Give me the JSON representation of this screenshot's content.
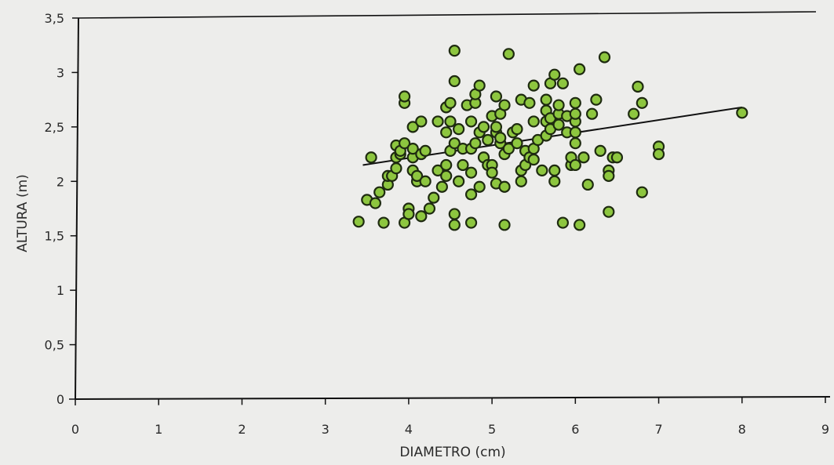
{
  "chart_data": {
    "type": "scatter",
    "title": "",
    "xlabel": "DIAMETRO (cm)",
    "ylabel": "ALTURA (m)",
    "xlim": [
      0,
      9
    ],
    "ylim": [
      0,
      3.5
    ],
    "x_ticks": [
      0,
      1,
      2,
      3,
      4,
      5,
      6,
      7,
      8,
      9
    ],
    "x_tick_labels": [
      "0",
      "1",
      "2",
      "3",
      "4",
      "5",
      "6",
      "7",
      "8",
      "9"
    ],
    "y_ticks": [
      0,
      0.5,
      1,
      1.5,
      2,
      2.5,
      3,
      3.5
    ],
    "y_tick_labels": [
      "0",
      "0,5",
      "1",
      "1,5",
      "2",
      "2,5",
      "3",
      "3,5"
    ],
    "grid": false,
    "legend": "none",
    "colors": {
      "point_fill": "#8dc63f",
      "point_stroke": "#1e2a10",
      "trendline": "#111111",
      "axis": "#111111",
      "background": "#ededeb"
    },
    "trendline": {
      "type": "linear",
      "x": [
        3.45,
        8.0
      ],
      "y": [
        2.15,
        2.68
      ]
    },
    "points": [
      [
        3.4,
        1.63
      ],
      [
        3.55,
        2.22
      ],
      [
        3.5,
        1.83
      ],
      [
        3.6,
        1.8
      ],
      [
        3.65,
        1.9
      ],
      [
        3.7,
        1.62
      ],
      [
        3.75,
        1.97
      ],
      [
        3.75,
        2.05
      ],
      [
        3.8,
        2.05
      ],
      [
        3.85,
        2.12
      ],
      [
        3.85,
        2.22
      ],
      [
        3.85,
        2.33
      ],
      [
        3.9,
        2.25
      ],
      [
        3.9,
        2.28
      ],
      [
        3.95,
        2.35
      ],
      [
        3.95,
        2.72
      ],
      [
        3.95,
        2.78
      ],
      [
        3.95,
        1.62
      ],
      [
        4.0,
        1.75
      ],
      [
        4.0,
        1.7
      ],
      [
        4.05,
        2.1
      ],
      [
        4.05,
        2.22
      ],
      [
        4.05,
        2.3
      ],
      [
        4.05,
        2.5
      ],
      [
        4.1,
        2.0
      ],
      [
        4.1,
        2.05
      ],
      [
        4.15,
        2.25
      ],
      [
        4.15,
        2.55
      ],
      [
        4.15,
        1.68
      ],
      [
        4.2,
        2.0
      ],
      [
        4.2,
        2.28
      ],
      [
        4.25,
        1.75
      ],
      [
        4.3,
        1.85
      ],
      [
        4.35,
        2.1
      ],
      [
        4.35,
        2.55
      ],
      [
        4.4,
        1.95
      ],
      [
        4.45,
        2.05
      ],
      [
        4.45,
        2.15
      ],
      [
        4.45,
        2.45
      ],
      [
        4.45,
        2.68
      ],
      [
        4.5,
        2.28
      ],
      [
        4.5,
        2.55
      ],
      [
        4.5,
        2.72
      ],
      [
        4.55,
        1.6
      ],
      [
        4.55,
        1.7
      ],
      [
        4.55,
        2.35
      ],
      [
        4.55,
        2.92
      ],
      [
        4.55,
        3.2
      ],
      [
        4.6,
        2.48
      ],
      [
        4.6,
        2.0
      ],
      [
        4.65,
        2.15
      ],
      [
        4.65,
        2.3
      ],
      [
        4.7,
        2.7
      ],
      [
        4.75,
        1.62
      ],
      [
        4.75,
        1.88
      ],
      [
        4.75,
        2.08
      ],
      [
        4.75,
        2.3
      ],
      [
        4.75,
        2.55
      ],
      [
        4.8,
        2.72
      ],
      [
        4.8,
        2.8
      ],
      [
        4.8,
        2.35
      ],
      [
        4.85,
        1.95
      ],
      [
        4.85,
        2.45
      ],
      [
        4.85,
        2.88
      ],
      [
        4.9,
        2.5
      ],
      [
        4.9,
        2.22
      ],
      [
        4.95,
        2.15
      ],
      [
        4.95,
        2.38
      ],
      [
        5.0,
        2.6
      ],
      [
        5.0,
        2.15
      ],
      [
        5.0,
        2.08
      ],
      [
        5.05,
        2.45
      ],
      [
        5.05,
        2.5
      ],
      [
        5.05,
        2.78
      ],
      [
        5.05,
        1.98
      ],
      [
        5.1,
        2.35
      ],
      [
        5.1,
        2.4
      ],
      [
        5.1,
        2.62
      ],
      [
        5.15,
        2.25
      ],
      [
        5.15,
        1.6
      ],
      [
        5.15,
        1.95
      ],
      [
        5.15,
        2.7
      ],
      [
        5.2,
        3.17
      ],
      [
        5.2,
        2.3
      ],
      [
        5.25,
        2.45
      ],
      [
        5.3,
        2.35
      ],
      [
        5.3,
        2.48
      ],
      [
        5.35,
        2.1
      ],
      [
        5.35,
        2.0
      ],
      [
        5.35,
        2.75
      ],
      [
        5.4,
        2.15
      ],
      [
        5.4,
        2.28
      ],
      [
        5.45,
        2.22
      ],
      [
        5.45,
        2.72
      ],
      [
        5.5,
        2.3
      ],
      [
        5.5,
        2.55
      ],
      [
        5.5,
        2.88
      ],
      [
        5.5,
        2.2
      ],
      [
        5.55,
        2.38
      ],
      [
        5.6,
        2.1
      ],
      [
        5.65,
        2.42
      ],
      [
        5.65,
        2.55
      ],
      [
        5.65,
        2.65
      ],
      [
        5.65,
        2.75
      ],
      [
        5.7,
        2.9
      ],
      [
        5.7,
        2.48
      ],
      [
        5.7,
        2.58
      ],
      [
        5.75,
        2.0
      ],
      [
        5.75,
        2.1
      ],
      [
        5.75,
        2.98
      ],
      [
        5.8,
        2.52
      ],
      [
        5.8,
        2.62
      ],
      [
        5.8,
        2.7
      ],
      [
        5.85,
        2.9
      ],
      [
        5.85,
        1.62
      ],
      [
        5.9,
        2.45
      ],
      [
        5.9,
        2.6
      ],
      [
        5.95,
        2.15
      ],
      [
        5.95,
        2.22
      ],
      [
        6.0,
        2.15
      ],
      [
        6.0,
        2.45
      ],
      [
        6.0,
        2.35
      ],
      [
        6.0,
        2.55
      ],
      [
        6.0,
        2.72
      ],
      [
        6.0,
        2.62
      ],
      [
        6.05,
        3.03
      ],
      [
        6.05,
        1.6
      ],
      [
        6.1,
        2.22
      ],
      [
        6.15,
        1.97
      ],
      [
        6.2,
        2.62
      ],
      [
        6.25,
        2.75
      ],
      [
        6.3,
        2.28
      ],
      [
        6.35,
        3.14
      ],
      [
        6.4,
        2.1
      ],
      [
        6.4,
        2.05
      ],
      [
        6.4,
        1.72
      ],
      [
        6.45,
        2.22
      ],
      [
        6.5,
        2.22
      ],
      [
        6.7,
        2.62
      ],
      [
        6.75,
        2.87
      ],
      [
        6.8,
        2.72
      ],
      [
        6.8,
        1.9
      ],
      [
        7.0,
        2.32
      ],
      [
        7.0,
        2.25
      ],
      [
        8.0,
        2.63
      ]
    ]
  }
}
